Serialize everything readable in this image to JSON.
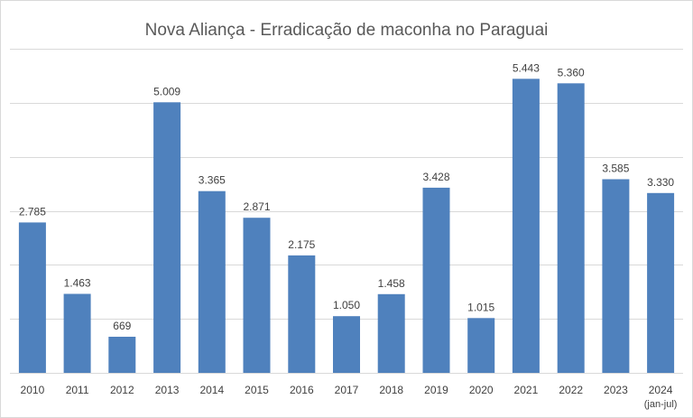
{
  "chart_data": {
    "type": "bar",
    "title": "Nova Aliança - Erradicação de maconha no Paraguai",
    "xlabel": "",
    "ylabel": "",
    "ylim": [
      0,
      6000
    ],
    "grid": true,
    "legend": "none",
    "bar_color": "#4f81bd",
    "categories": [
      "2010",
      "2011",
      "2012",
      "2013",
      "2014",
      "2015",
      "2016",
      "2017",
      "2018",
      "2019",
      "2020",
      "2021",
      "2022",
      "2023",
      "2024"
    ],
    "category_sublabels": [
      "",
      "",
      "",
      "",
      "",
      "",
      "",
      "",
      "",
      "",
      "",
      "",
      "",
      "",
      "(jan-jul)"
    ],
    "values": [
      2785,
      1463,
      669,
      5009,
      3365,
      2871,
      2175,
      1050,
      1458,
      3428,
      1015,
      5443,
      5360,
      3585,
      3330
    ],
    "value_labels": [
      "2.785",
      "1.463",
      "669",
      "5.009",
      "3.365",
      "2.871",
      "2.175",
      "1.050",
      "1.458",
      "3.428",
      "1.015",
      "5.443",
      "5.360",
      "3.585",
      "3.330"
    ]
  }
}
